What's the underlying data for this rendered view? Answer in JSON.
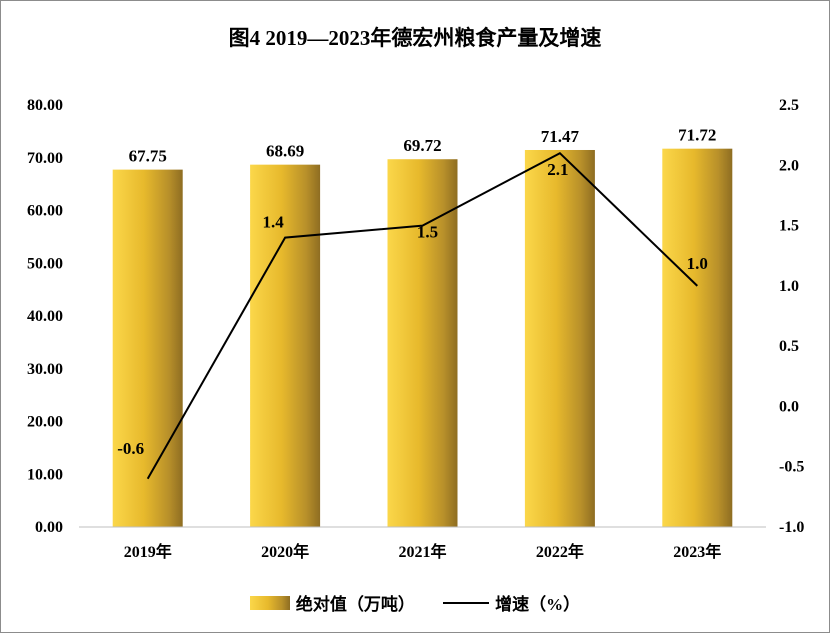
{
  "chart_data": {
    "type": "bar",
    "title": "图4  2019—2023年德宏州粮食产量及增速",
    "categories": [
      "2019年",
      "2020年",
      "2021年",
      "2022年",
      "2023年"
    ],
    "series": [
      {
        "name": "绝对值（万吨）",
        "type": "bar",
        "axis": "left",
        "values": [
          67.75,
          68.69,
          69.72,
          71.47,
          71.72
        ],
        "labels": [
          "67.75",
          "68.69",
          "69.72",
          "71.47",
          "71.72"
        ]
      },
      {
        "name": "增速（%）",
        "type": "line",
        "axis": "right",
        "values": [
          -0.6,
          1.4,
          1.5,
          2.1,
          1.0
        ],
        "labels": [
          "-0.6",
          "1.4",
          "1.5",
          "2.1",
          "1.0"
        ]
      }
    ],
    "y_left": {
      "min": 0,
      "max": 80,
      "step": 10,
      "tick_labels": [
        "0.00",
        "10.00",
        "20.00",
        "30.00",
        "40.00",
        "50.00",
        "60.00",
        "70.00",
        "80.00"
      ]
    },
    "y_right": {
      "min": -1.0,
      "max": 2.5,
      "step": 0.5,
      "tick_labels": [
        "-1.0",
        "-0.5",
        "0.0",
        "0.5",
        "1.0",
        "1.5",
        "2.0",
        "2.5"
      ]
    },
    "grid": false,
    "legend_position": "bottom",
    "colors": {
      "bar_light": "#fbd74a",
      "bar_mid": "#e7b92c",
      "bar_dark": "#8e6d22",
      "line": "#000000"
    }
  },
  "legend": {
    "bar_label": "绝对值（万吨）",
    "line_label": "增速（%）"
  }
}
